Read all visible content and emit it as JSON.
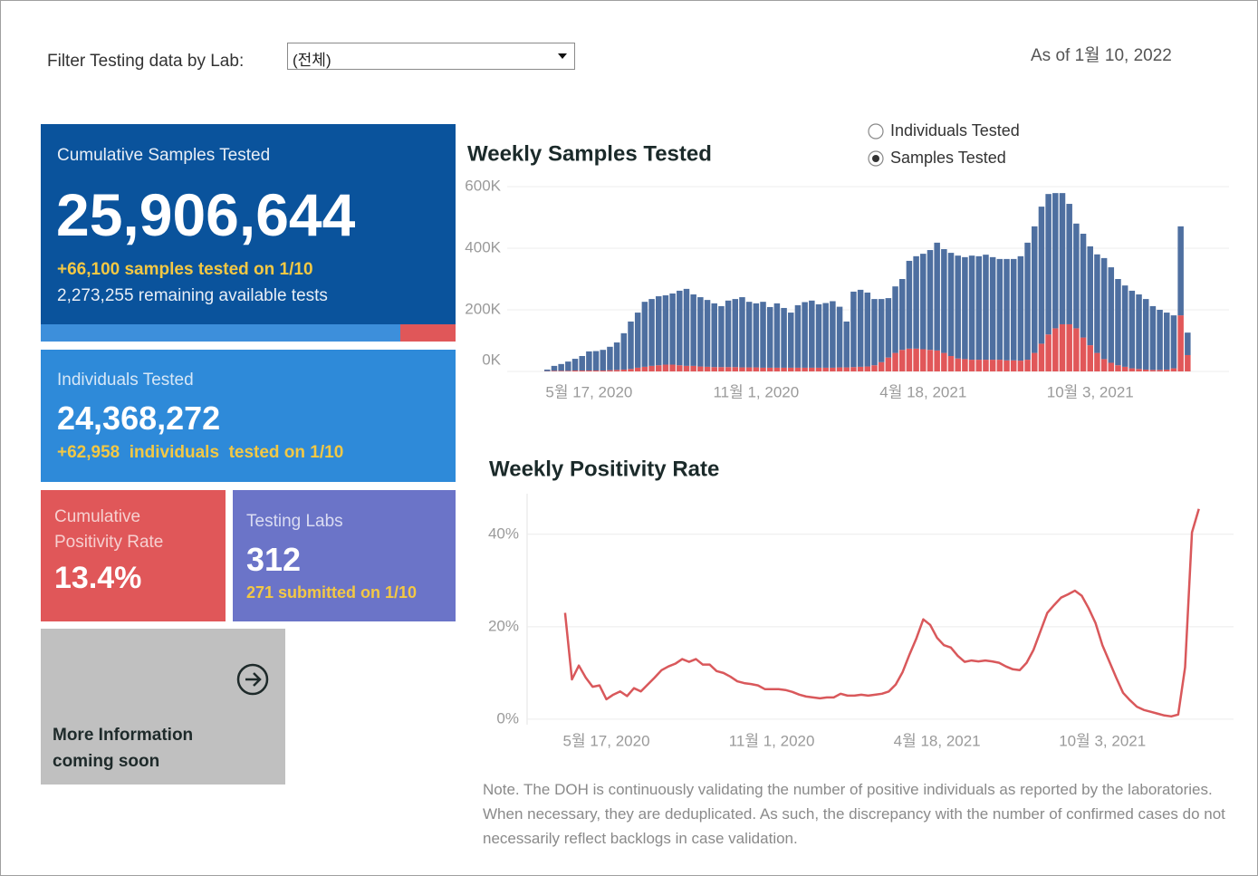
{
  "filter": {
    "label": "Filter Testing data by Lab:",
    "selected": "(전체)"
  },
  "as_of": "As of 1월 10, 2022",
  "cards": {
    "samples": {
      "title": "Cumulative Samples Tested",
      "value": "25,906,644",
      "delta": "+66,100 samples tested on 1/10",
      "remaining": "2,273,255 remaining available tests"
    },
    "individuals": {
      "title": "Individuals Tested",
      "value": "24,368,272",
      "delta": "+62,958  individuals  tested on 1/10"
    },
    "positivity": {
      "title": "Cumulative Positivity Rate",
      "value": "13.4%"
    },
    "labs": {
      "title": "Testing Labs",
      "value": "312",
      "delta": "271 submitted on 1/10"
    },
    "more_info": [
      "More Information",
      "coming soon"
    ]
  },
  "toggle": {
    "options": [
      "Individuals Tested",
      "Samples Tested"
    ],
    "selected": 1
  },
  "note": "Note. The DOH is continuously validating the number of positive individuals as reported by the laboratories. When necessary, they are deduplicated. As such, the discrepancy with the number of confirmed cases do not necessarily reflect backlogs in case validation.",
  "chart_data": [
    {
      "type": "bar",
      "stacked": true,
      "title": "Weekly Samples Tested",
      "x": [
        "2020-04-05",
        "2020-04-12",
        "2020-04-19",
        "2020-04-26",
        "2020-05-03",
        "2020-05-10",
        "2020-05-17",
        "2020-05-24",
        "2020-05-31",
        "2020-06-07",
        "2020-06-14",
        "2020-06-21",
        "2020-06-28",
        "2020-07-05",
        "2020-07-12",
        "2020-07-19",
        "2020-07-26",
        "2020-08-02",
        "2020-08-09",
        "2020-08-16",
        "2020-08-23",
        "2020-08-30",
        "2020-09-06",
        "2020-09-13",
        "2020-09-20",
        "2020-09-27",
        "2020-10-04",
        "2020-10-11",
        "2020-10-18",
        "2020-10-25",
        "2020-11-01",
        "2020-11-08",
        "2020-11-15",
        "2020-11-22",
        "2020-11-29",
        "2020-12-06",
        "2020-12-13",
        "2020-12-20",
        "2020-12-27",
        "2021-01-03",
        "2021-01-10",
        "2021-01-17",
        "2021-01-24",
        "2021-01-31",
        "2021-02-07",
        "2021-02-14",
        "2021-02-21",
        "2021-02-28",
        "2021-03-07",
        "2021-03-14",
        "2021-03-21",
        "2021-03-28",
        "2021-04-04",
        "2021-04-11",
        "2021-04-18",
        "2021-04-25",
        "2021-05-02",
        "2021-05-09",
        "2021-05-16",
        "2021-05-23",
        "2021-05-30",
        "2021-06-06",
        "2021-06-13",
        "2021-06-20",
        "2021-06-27",
        "2021-07-04",
        "2021-07-11",
        "2021-07-18",
        "2021-07-25",
        "2021-08-01",
        "2021-08-08",
        "2021-08-15",
        "2021-08-22",
        "2021-08-29",
        "2021-09-05",
        "2021-09-12",
        "2021-09-19",
        "2021-09-26",
        "2021-10-03",
        "2021-10-10",
        "2021-10-17",
        "2021-10-24",
        "2021-10-31",
        "2021-11-07",
        "2021-11-14",
        "2021-11-21",
        "2021-11-28",
        "2021-12-05",
        "2021-12-12",
        "2021-12-19",
        "2021-12-26",
        "2022-01-02",
        "2022-01-09"
      ],
      "series": [
        {
          "color": "#e15759",
          "values": [
            1000,
            2000,
            2000,
            2000,
            3000,
            3000,
            3000,
            3000,
            3000,
            4000,
            5000,
            6000,
            8000,
            12000,
            15000,
            18000,
            20000,
            22000,
            22000,
            20000,
            18000,
            18000,
            16000,
            15000,
            14000,
            14000,
            14000,
            14000,
            13000,
            13000,
            13000,
            12000,
            12000,
            12000,
            12000,
            12000,
            12000,
            12000,
            12000,
            12000,
            12000,
            12000,
            13000,
            13000,
            14000,
            15000,
            16000,
            20000,
            30000,
            45000,
            60000,
            70000,
            74000,
            74000,
            72000,
            70000,
            68000,
            60000,
            50000,
            42000,
            40000,
            38000,
            38000,
            38000,
            38000,
            38000,
            36000,
            36000,
            35000,
            38000,
            60000,
            90000,
            120000,
            140000,
            153000,
            153000,
            140000,
            110000,
            85000,
            60000,
            40000,
            28000,
            20000,
            15000,
            10000,
            8000,
            6000,
            5000,
            5000,
            6000,
            10000,
            182000,
            53000
          ]
        },
        {
          "color": "#4e6fa0",
          "values": [
            5000,
            16000,
            22000,
            30000,
            38000,
            47000,
            62000,
            63000,
            67000,
            76000,
            89000,
            118000,
            154000,
            179000,
            211000,
            217000,
            224000,
            225000,
            231000,
            242000,
            250000,
            232000,
            225000,
            217000,
            207000,
            198000,
            216000,
            221000,
            228000,
            213000,
            208000,
            214000,
            197000,
            209000,
            194000,
            179000,
            203000,
            213000,
            218000,
            206000,
            210000,
            216000,
            197000,
            149000,
            245000,
            250000,
            240000,
            215000,
            205000,
            193000,
            216000,
            230000,
            285000,
            300000,
            310000,
            324000,
            350000,
            337000,
            335000,
            334000,
            331000,
            338000,
            336000,
            341000,
            333000,
            327000,
            329000,
            329000,
            339000,
            380000,
            411000,
            445000,
            456000,
            439000,
            426000,
            391000,
            340000,
            337000,
            321000,
            320000,
            328000,
            310000,
            280000,
            264000,
            252000,
            242000,
            229000,
            207000,
            195000,
            185000,
            172000,
            289000,
            73000
          ]
        }
      ],
      "xlim": [
        "2020-03-23",
        "2022-01-26"
      ],
      "xticks": [
        {
          "value": "2020-05-17",
          "label": "5월 17, 2020"
        },
        {
          "value": "2020-11-01",
          "label": "11월 1, 2020"
        },
        {
          "value": "2021-04-18",
          "label": "4월 18, 2021"
        },
        {
          "value": "2021-10-03",
          "label": "10월 3, 2021"
        }
      ],
      "ylim": [
        0,
        600000
      ],
      "yticks": [
        {
          "value": 0,
          "label": "0K"
        },
        {
          "value": 200000,
          "label": "200K"
        },
        {
          "value": 400000,
          "label": "400K"
        },
        {
          "value": 600000,
          "label": "600K"
        }
      ],
      "grid": true
    },
    {
      "type": "line",
      "title": "Weekly Positivity Rate",
      "x": [
        "2020-04-05",
        "2020-04-12",
        "2020-04-19",
        "2020-04-26",
        "2020-05-03",
        "2020-05-10",
        "2020-05-17",
        "2020-05-24",
        "2020-05-31",
        "2020-06-07",
        "2020-06-14",
        "2020-06-21",
        "2020-06-28",
        "2020-07-05",
        "2020-07-12",
        "2020-07-19",
        "2020-07-26",
        "2020-08-02",
        "2020-08-09",
        "2020-08-16",
        "2020-08-23",
        "2020-08-30",
        "2020-09-06",
        "2020-09-13",
        "2020-09-20",
        "2020-09-27",
        "2020-10-04",
        "2020-10-11",
        "2020-10-18",
        "2020-10-25",
        "2020-11-01",
        "2020-11-08",
        "2020-11-15",
        "2020-11-22",
        "2020-11-29",
        "2020-12-06",
        "2020-12-13",
        "2020-12-20",
        "2020-12-27",
        "2021-01-03",
        "2021-01-10",
        "2021-01-17",
        "2021-01-24",
        "2021-01-31",
        "2021-02-07",
        "2021-02-14",
        "2021-02-21",
        "2021-02-28",
        "2021-03-07",
        "2021-03-14",
        "2021-03-21",
        "2021-03-28",
        "2021-04-04",
        "2021-04-11",
        "2021-04-18",
        "2021-04-25",
        "2021-05-02",
        "2021-05-09",
        "2021-05-16",
        "2021-05-23",
        "2021-05-30",
        "2021-06-06",
        "2021-06-13",
        "2021-06-20",
        "2021-06-27",
        "2021-07-04",
        "2021-07-11",
        "2021-07-18",
        "2021-07-25",
        "2021-08-01",
        "2021-08-08",
        "2021-08-15",
        "2021-08-22",
        "2021-08-29",
        "2021-09-05",
        "2021-09-12",
        "2021-09-19",
        "2021-09-26",
        "2021-10-03",
        "2021-10-10",
        "2021-10-17",
        "2021-10-24",
        "2021-10-31",
        "2021-11-07",
        "2021-11-14",
        "2021-11-21",
        "2021-11-28",
        "2021-12-05",
        "2021-12-12",
        "2021-12-19",
        "2021-12-26",
        "2022-01-02",
        "2022-01-09"
      ],
      "values": [
        23,
        8.6,
        11.6,
        9,
        7,
        7.3,
        4.3,
        5.3,
        6,
        5,
        6.7,
        6,
        7.5,
        9,
        10.6,
        11.4,
        12,
        13,
        12.4,
        13,
        11.8,
        11.8,
        10.4,
        10,
        9.2,
        8.2,
        7.8,
        7.6,
        7.3,
        6.5,
        6.5,
        6.5,
        6.3,
        5.9,
        5.3,
        4.9,
        4.7,
        4.5,
        4.7,
        4.7,
        5.5,
        5.1,
        5.1,
        5.3,
        5.1,
        5.3,
        5.5,
        6,
        7.5,
        10.2,
        14,
        17.5,
        21.6,
        20.4,
        17.6,
        16,
        15.5,
        13.7,
        12.4,
        12.7,
        12.5,
        12.7,
        12.5,
        12.2,
        11.4,
        10.8,
        10.6,
        12.2,
        15,
        19,
        23,
        24.7,
        26.3,
        27,
        27.8,
        26.7,
        24,
        20.8,
        16,
        12.5,
        9,
        5.7,
        4.1,
        2.7,
        2,
        1.6,
        1.2,
        0.8,
        0.6,
        1,
        11.2,
        40.4,
        45.5
      ],
      "color": "#d9585b",
      "xlim": [
        "2020-03-14",
        "2022-01-24"
      ],
      "xticks": [
        {
          "value": "2020-05-17",
          "label": "5월 17, 2020"
        },
        {
          "value": "2020-11-01",
          "label": "11월 1, 2020"
        },
        {
          "value": "2021-04-18",
          "label": "4월 18, 2021"
        },
        {
          "value": "2021-10-03",
          "label": "10월 3, 2021"
        }
      ],
      "ylim": [
        -1.2,
        47.8
      ],
      "yticks": [
        {
          "value": 0,
          "label": "0%"
        },
        {
          "value": 20,
          "label": "20%"
        },
        {
          "value": 40,
          "label": "40%"
        }
      ],
      "grid": true
    }
  ]
}
